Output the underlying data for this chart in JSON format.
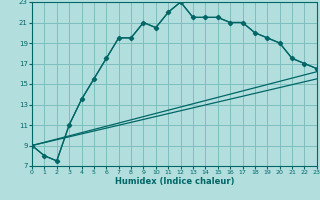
{
  "xlabel": "Humidex (Indice chaleur)",
  "bg_color": "#b2dede",
  "grid_color": "#7fbfbf",
  "line_color": "#006666",
  "x_min": 0,
  "x_max": 23,
  "y_min": 7,
  "y_max": 23,
  "yticks": [
    7,
    9,
    11,
    13,
    15,
    17,
    19,
    21,
    23
  ],
  "xticks": [
    0,
    1,
    2,
    3,
    4,
    5,
    6,
    7,
    8,
    9,
    10,
    11,
    12,
    13,
    14,
    15,
    16,
    17,
    18,
    19,
    20,
    21,
    22,
    23
  ],
  "line1_x": [
    0,
    1,
    2,
    3,
    4,
    5,
    6,
    7,
    8,
    9,
    10,
    11,
    12,
    13,
    14,
    15,
    16,
    17,
    18,
    19,
    20,
    21,
    22,
    23
  ],
  "line1_y": [
    9.0,
    8.0,
    7.5,
    11.0,
    13.5,
    15.5,
    17.5,
    19.5,
    19.5,
    21.0,
    20.5,
    22.0,
    23.0,
    21.5,
    21.5,
    21.5,
    21.0,
    21.0,
    20.0,
    19.5,
    19.0,
    17.5,
    17.0,
    16.5
  ],
  "line2_x": [
    0,
    1,
    2,
    3,
    4,
    5,
    6,
    7,
    8,
    9,
    10,
    11,
    12,
    13,
    14,
    15,
    16,
    17,
    18,
    19,
    20,
    21,
    22,
    23
  ],
  "line2_y": [
    9.0,
    8.0,
    7.5,
    11.0,
    13.5,
    15.5,
    17.5,
    19.5,
    19.5,
    21.0,
    20.5,
    22.0,
    23.0,
    21.5,
    21.5,
    21.5,
    21.0,
    21.0,
    20.0,
    19.5,
    19.0,
    17.5,
    17.0,
    16.5
  ],
  "line3_x": [
    0,
    23
  ],
  "line3_y": [
    9.0,
    15.5
  ],
  "line4_x": [
    0,
    23
  ],
  "line4_y": [
    9.0,
    16.2
  ]
}
